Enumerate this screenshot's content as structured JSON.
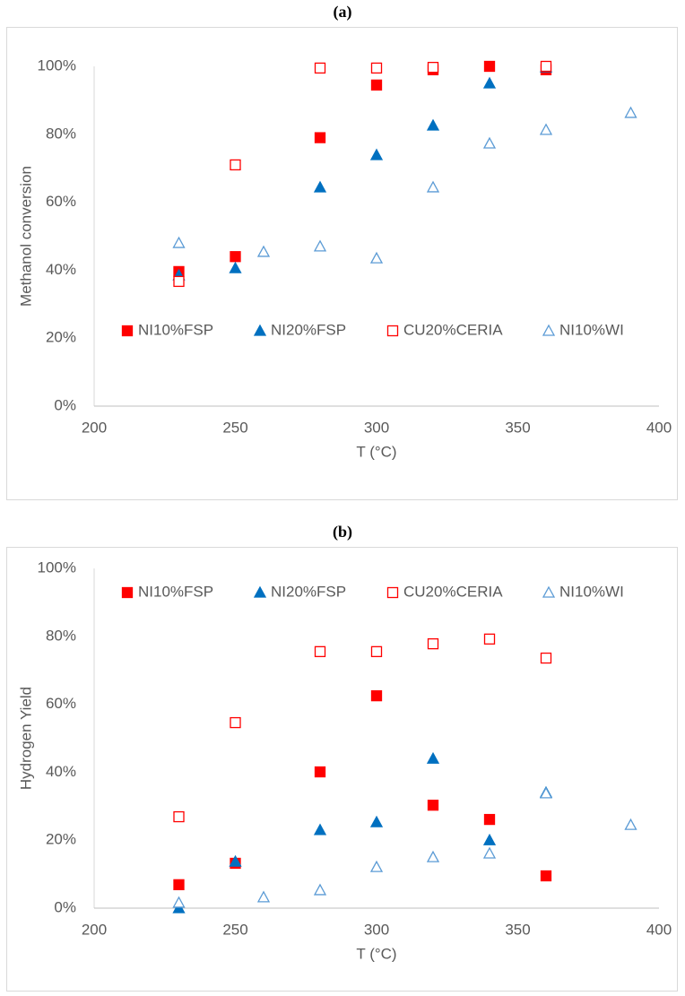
{
  "chart_data": [
    {
      "type": "scatter",
      "title": "(a)",
      "xlabel": "T (°C)",
      "ylabel": "Methanol conversion",
      "xlim": [
        200,
        400
      ],
      "xticks": [
        200,
        250,
        300,
        350,
        400
      ],
      "ylim": [
        0,
        100
      ],
      "yticks": [
        {
          "value": 0,
          "label": "0%"
        },
        {
          "value": 20,
          "label": "20%"
        },
        {
          "value": 40,
          "label": "40%"
        },
        {
          "value": 60,
          "label": "60%"
        },
        {
          "value": 80,
          "label": "80%"
        },
        {
          "value": 100,
          "label": "100%"
        }
      ],
      "grid": false,
      "legend": "lower",
      "series": [
        {
          "name": "NI10%FSP",
          "color": "#ff0000",
          "marker": "square",
          "filled": true,
          "x": [
            230,
            250,
            280,
            300,
            320,
            340,
            360
          ],
          "values": [
            39.6,
            44,
            79,
            94.5,
            99,
            100,
            99
          ]
        },
        {
          "name": "NI20%FSP",
          "color": "#0070c0",
          "marker": "triangle",
          "filled": true,
          "x": [
            230,
            250,
            280,
            300,
            320,
            340,
            360
          ],
          "values": [
            38.5,
            40.6,
            64.4,
            73.9,
            82.6,
            95,
            99.7
          ]
        },
        {
          "name": "CU20%CERIA",
          "color": "#ff0000",
          "marker": "square",
          "filled": false,
          "x": [
            230,
            250,
            280,
            300,
            320,
            360
          ],
          "values": [
            36.7,
            71,
            99.5,
            99.5,
            99.7,
            100
          ]
        },
        {
          "name": "NI10%WI",
          "color": "#5b9bd5",
          "marker": "triangle",
          "filled": false,
          "x": [
            230,
            260,
            280,
            300,
            320,
            340,
            360,
            390
          ],
          "values": [
            48,
            45.4,
            47,
            43.5,
            64.4,
            77.3,
            81.3,
            86.3
          ]
        }
      ]
    },
    {
      "type": "scatter",
      "title": "(b)",
      "xlabel": "T (°C)",
      "ylabel": "Hydrogen Yield",
      "xlim": [
        200,
        400
      ],
      "xticks": [
        200,
        250,
        300,
        350,
        400
      ],
      "ylim": [
        0,
        100
      ],
      "yticks": [
        {
          "value": 0,
          "label": "0%"
        },
        {
          "value": 20,
          "label": "20%"
        },
        {
          "value": 40,
          "label": "40%"
        },
        {
          "value": 60,
          "label": "60%"
        },
        {
          "value": 80,
          "label": "80%"
        },
        {
          "value": 100,
          "label": "100%"
        }
      ],
      "grid": false,
      "legend": "top",
      "series": [
        {
          "name": "NI10%FSP",
          "color": "#ff0000",
          "marker": "square",
          "filled": true,
          "x": [
            230,
            250,
            280,
            300,
            320,
            340,
            360
          ],
          "values": [
            6.9,
            13.2,
            40.1,
            62.5,
            30.3,
            26.1,
            9.5
          ]
        },
        {
          "name": "NI20%FSP",
          "color": "#0070c0",
          "marker": "triangle",
          "filled": true,
          "x": [
            230,
            250,
            280,
            300,
            320,
            340,
            360
          ],
          "values": [
            0,
            13.7,
            23,
            25.3,
            44,
            20,
            34
          ]
        },
        {
          "name": "CU20%CERIA",
          "color": "#ff0000",
          "marker": "square",
          "filled": false,
          "x": [
            230,
            250,
            280,
            300,
            320,
            340,
            360
          ],
          "values": [
            26.9,
            54.6,
            75.5,
            75.5,
            77.8,
            79.2,
            73.6
          ]
        },
        {
          "name": "NI10%WI",
          "color": "#5b9bd5",
          "marker": "triangle",
          "filled": false,
          "x": [
            230,
            260,
            280,
            300,
            320,
            340,
            360,
            390
          ],
          "values": [
            1.6,
            3.2,
            5.3,
            12.1,
            15,
            16.1,
            33.8,
            24.5
          ]
        }
      ]
    }
  ]
}
